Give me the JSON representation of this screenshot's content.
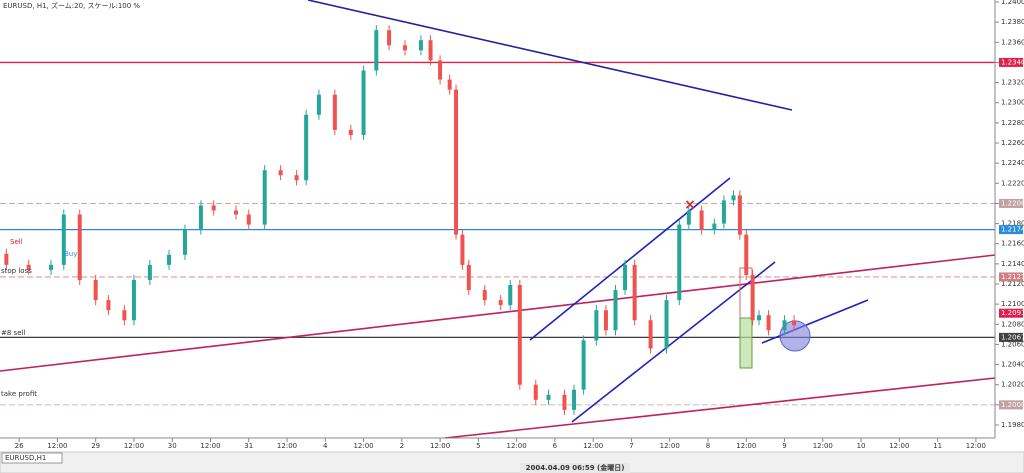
{
  "chart_data": {
    "type": "candlestick",
    "title": "EURUSD, H1, ズーム:20, スケール:100 %",
    "tab": "EURUSD,H1",
    "status": "2004.04.09 06:59 (金曜日)",
    "x": [
      2,
      9,
      16,
      20,
      25,
      30,
      34,
      39,
      42,
      47,
      53,
      58,
      63,
      67,
      74,
      78,
      83,
      88,
      93,
      96,
      100,
      105,
      110,
      114,
      118,
      122,
      127,
      132,
      135,
      138,
      141,
      143,
      145,
      147,
      152,
      157,
      160,
      163,
      168,
      172,
      177,
      180,
      183,
      187,
      190,
      193,
      196,
      199,
      204,
      209,
      213,
      216,
      220,
      224,
      227,
      230,
      232,
      234,
      236,
      238,
      241,
      246,
      249
    ],
    "open": [
      1.215,
      1.2139,
      1.2134,
      1.2139,
      1.2189,
      1.2124,
      1.2104,
      1.2094,
      1.2084,
      1.2124,
      1.2139,
      1.2149,
      1.2174,
      1.2198,
      1.2193,
      1.2189,
      1.2179,
      1.2233,
      1.2228,
      1.2223,
      1.2288,
      1.2308,
      1.2273,
      1.2268,
      1.2332,
      1.2372,
      1.2357,
      1.2352,
      1.2362,
      1.2342,
      1.2323,
      1.2313,
      1.2169,
      1.2139,
      1.2114,
      1.2104,
      1.2099,
      1.2119,
      1.202,
      1.2005,
      1.201,
      1.1995,
      1.2015,
      1.2064,
      1.2094,
      1.2074,
      1.2114,
      1.2139,
      1.2084,
      1.2056,
      1.2104,
      1.2179,
      1.2193,
      1.2174,
      1.218,
      1.2203,
      1.2208,
      1.2169,
      1.2129,
      1.2084,
      1.2089,
      1.2074,
      1.2084
    ],
    "high": [
      1.2155,
      1.2144,
      1.2144,
      1.2194,
      1.2194,
      1.2129,
      1.2109,
      1.2099,
      1.2129,
      1.2144,
      1.2154,
      1.2179,
      1.2203,
      1.2203,
      1.2198,
      1.2194,
      1.2238,
      1.2238,
      1.2233,
      1.2293,
      1.2313,
      1.2313,
      1.2278,
      1.2337,
      1.2377,
      1.2377,
      1.2362,
      1.2367,
      1.2367,
      1.2347,
      1.2328,
      1.2318,
      1.2174,
      1.2144,
      1.2119,
      1.2109,
      1.2124,
      1.2124,
      1.2025,
      1.2015,
      1.2015,
      1.202,
      1.2069,
      1.2099,
      1.2099,
      1.2119,
      1.2144,
      1.2144,
      1.2089,
      1.2109,
      1.2184,
      1.2198,
      1.2198,
      1.2185,
      1.2208,
      1.2213,
      1.2213,
      1.2174,
      1.2134,
      1.2094,
      1.2094,
      1.2089,
      1.2089
    ],
    "low": [
      1.2134,
      1.2129,
      1.2129,
      1.2134,
      1.2119,
      1.2099,
      1.2089,
      1.2079,
      1.2079,
      1.2119,
      1.2134,
      1.2144,
      1.2169,
      1.2188,
      1.2184,
      1.2174,
      1.2174,
      1.2223,
      1.2218,
      1.2218,
      1.2283,
      1.2268,
      1.2263,
      1.2263,
      1.2327,
      1.2352,
      1.2347,
      1.2347,
      1.2337,
      1.2318,
      1.2308,
      1.2164,
      1.2134,
      1.2109,
      1.2099,
      1.2094,
      1.2094,
      1.2015,
      1.2,
      1.2,
      1.199,
      1.199,
      1.201,
      1.2059,
      1.2069,
      1.2069,
      1.2109,
      1.2079,
      1.2051,
      1.2051,
      1.2099,
      1.2174,
      1.2169,
      1.2169,
      1.2175,
      1.2198,
      1.2164,
      1.2124,
      1.2079,
      1.2079,
      1.2069,
      1.2069,
      1.2074
    ],
    "close": [
      1.2139,
      1.2134,
      1.2139,
      1.2189,
      1.2124,
      1.2104,
      1.2094,
      1.2084,
      1.2124,
      1.2139,
      1.2149,
      1.2174,
      1.2198,
      1.2193,
      1.2189,
      1.2179,
      1.2233,
      1.2228,
      1.2223,
      1.2288,
      1.2308,
      1.2273,
      1.2268,
      1.2332,
      1.2372,
      1.2357,
      1.2352,
      1.2362,
      1.2342,
      1.2323,
      1.2313,
      1.2169,
      1.2139,
      1.2114,
      1.2104,
      1.2099,
      1.2119,
      1.202,
      1.2005,
      1.201,
      1.1995,
      1.2015,
      1.2064,
      1.2094,
      1.2074,
      1.2114,
      1.2139,
      1.2084,
      1.2056,
      1.2104,
      1.2179,
      1.2193,
      1.2174,
      1.218,
      1.2203,
      1.2208,
      1.2169,
      1.2129,
      1.2084,
      1.2089,
      1.2074,
      1.2084,
      1.2079
    ],
    "up_color": "#26a69a",
    "down_color": "#ef5350",
    "xlim": [
      0,
      312
    ],
    "ylim": [
      1.198,
      1.24
    ],
    "xticks": [
      {
        "value": 6,
        "label": "26"
      },
      {
        "value": 18,
        "label": "12:00"
      },
      {
        "value": 30,
        "label": "29"
      },
      {
        "value": 42,
        "label": "12:00"
      },
      {
        "value": 54,
        "label": "30"
      },
      {
        "value": 66,
        "label": "12:00"
      },
      {
        "value": 78,
        "label": "31"
      },
      {
        "value": 90,
        "label": "12:00"
      },
      {
        "value": 102,
        "label": "4"
      },
      {
        "value": 114,
        "label": "12:00"
      },
      {
        "value": 126,
        "label": "2"
      },
      {
        "value": 138,
        "label": "12:00"
      },
      {
        "value": 150,
        "label": "5"
      },
      {
        "value": 162,
        "label": "12:00"
      },
      {
        "value": 174,
        "label": "6"
      },
      {
        "value": 186,
        "label": "12:00"
      },
      {
        "value": 198,
        "label": "7"
      },
      {
        "value": 210,
        "label": "12:00"
      },
      {
        "value": 222,
        "label": "8"
      },
      {
        "value": 234,
        "label": "12:00"
      },
      {
        "value": 246,
        "label": "9"
      },
      {
        "value": 258,
        "label": "12:00"
      },
      {
        "value": 270,
        "label": "10"
      },
      {
        "value": 282,
        "label": "12:00"
      },
      {
        "value": 294,
        "label": "11"
      },
      {
        "value": 306,
        "label": "12:00"
      }
    ],
    "yticks": [
      {
        "value": 1.24,
        "label": "1.2400"
      },
      {
        "value": 1.238,
        "label": "1.2380"
      },
      {
        "value": 1.236,
        "label": "1.2360"
      },
      {
        "value": 1.234,
        "label": "1.2340"
      },
      {
        "value": 1.232,
        "label": "1.2320"
      },
      {
        "value": 1.23,
        "label": "1.2300"
      },
      {
        "value": 1.228,
        "label": "1.2280"
      },
      {
        "value": 1.226,
        "label": "1.2260"
      },
      {
        "value": 1.224,
        "label": "1.2240"
      },
      {
        "value": 1.222,
        "label": "1.2220"
      },
      {
        "value": 1.22,
        "label": "1.2200"
      },
      {
        "value": 1.218,
        "label": "1.2180"
      },
      {
        "value": 1.216,
        "label": "1.2160"
      },
      {
        "value": 1.214,
        "label": "1.2140"
      },
      {
        "value": 1.212,
        "label": "1.2120"
      },
      {
        "value": 1.21,
        "label": "1.2100"
      },
      {
        "value": 1.208,
        "label": "1.2080"
      },
      {
        "value": 1.206,
        "label": "1.2060"
      },
      {
        "value": 1.204,
        "label": "1.2040"
      },
      {
        "value": 1.202,
        "label": "1.2020"
      },
      {
        "value": 1.2,
        "label": "1.2000"
      },
      {
        "value": 1.198,
        "label": "1.1980"
      }
    ],
    "levels": [
      {
        "value": 1.234,
        "label": "1.2340",
        "color": "#e0204a",
        "style": "solid"
      },
      {
        "value": 1.22,
        "label": "1.2200",
        "color": "#c0a0a0",
        "style": "dash"
      },
      {
        "value": 1.2174,
        "label": "1.2174",
        "color": "#2a8ae0",
        "style": "solid"
      },
      {
        "value": 1.2127,
        "label": "1.2127",
        "color": "#d08080",
        "style": "dash"
      },
      {
        "value": 1.2091,
        "label": "1.2091",
        "color": "#e0204a",
        "style": "none"
      },
      {
        "value": 1.2067,
        "label": "1.2067",
        "color": "#404040",
        "style": "solid"
      },
      {
        "value": 1.2,
        "label": "1.2000",
        "color": "#c0a0a0",
        "style": "dash"
      }
    ],
    "annotations": [
      "Sell",
      "Buy",
      "stop loss",
      "#8 sell",
      "take profit"
    ]
  }
}
